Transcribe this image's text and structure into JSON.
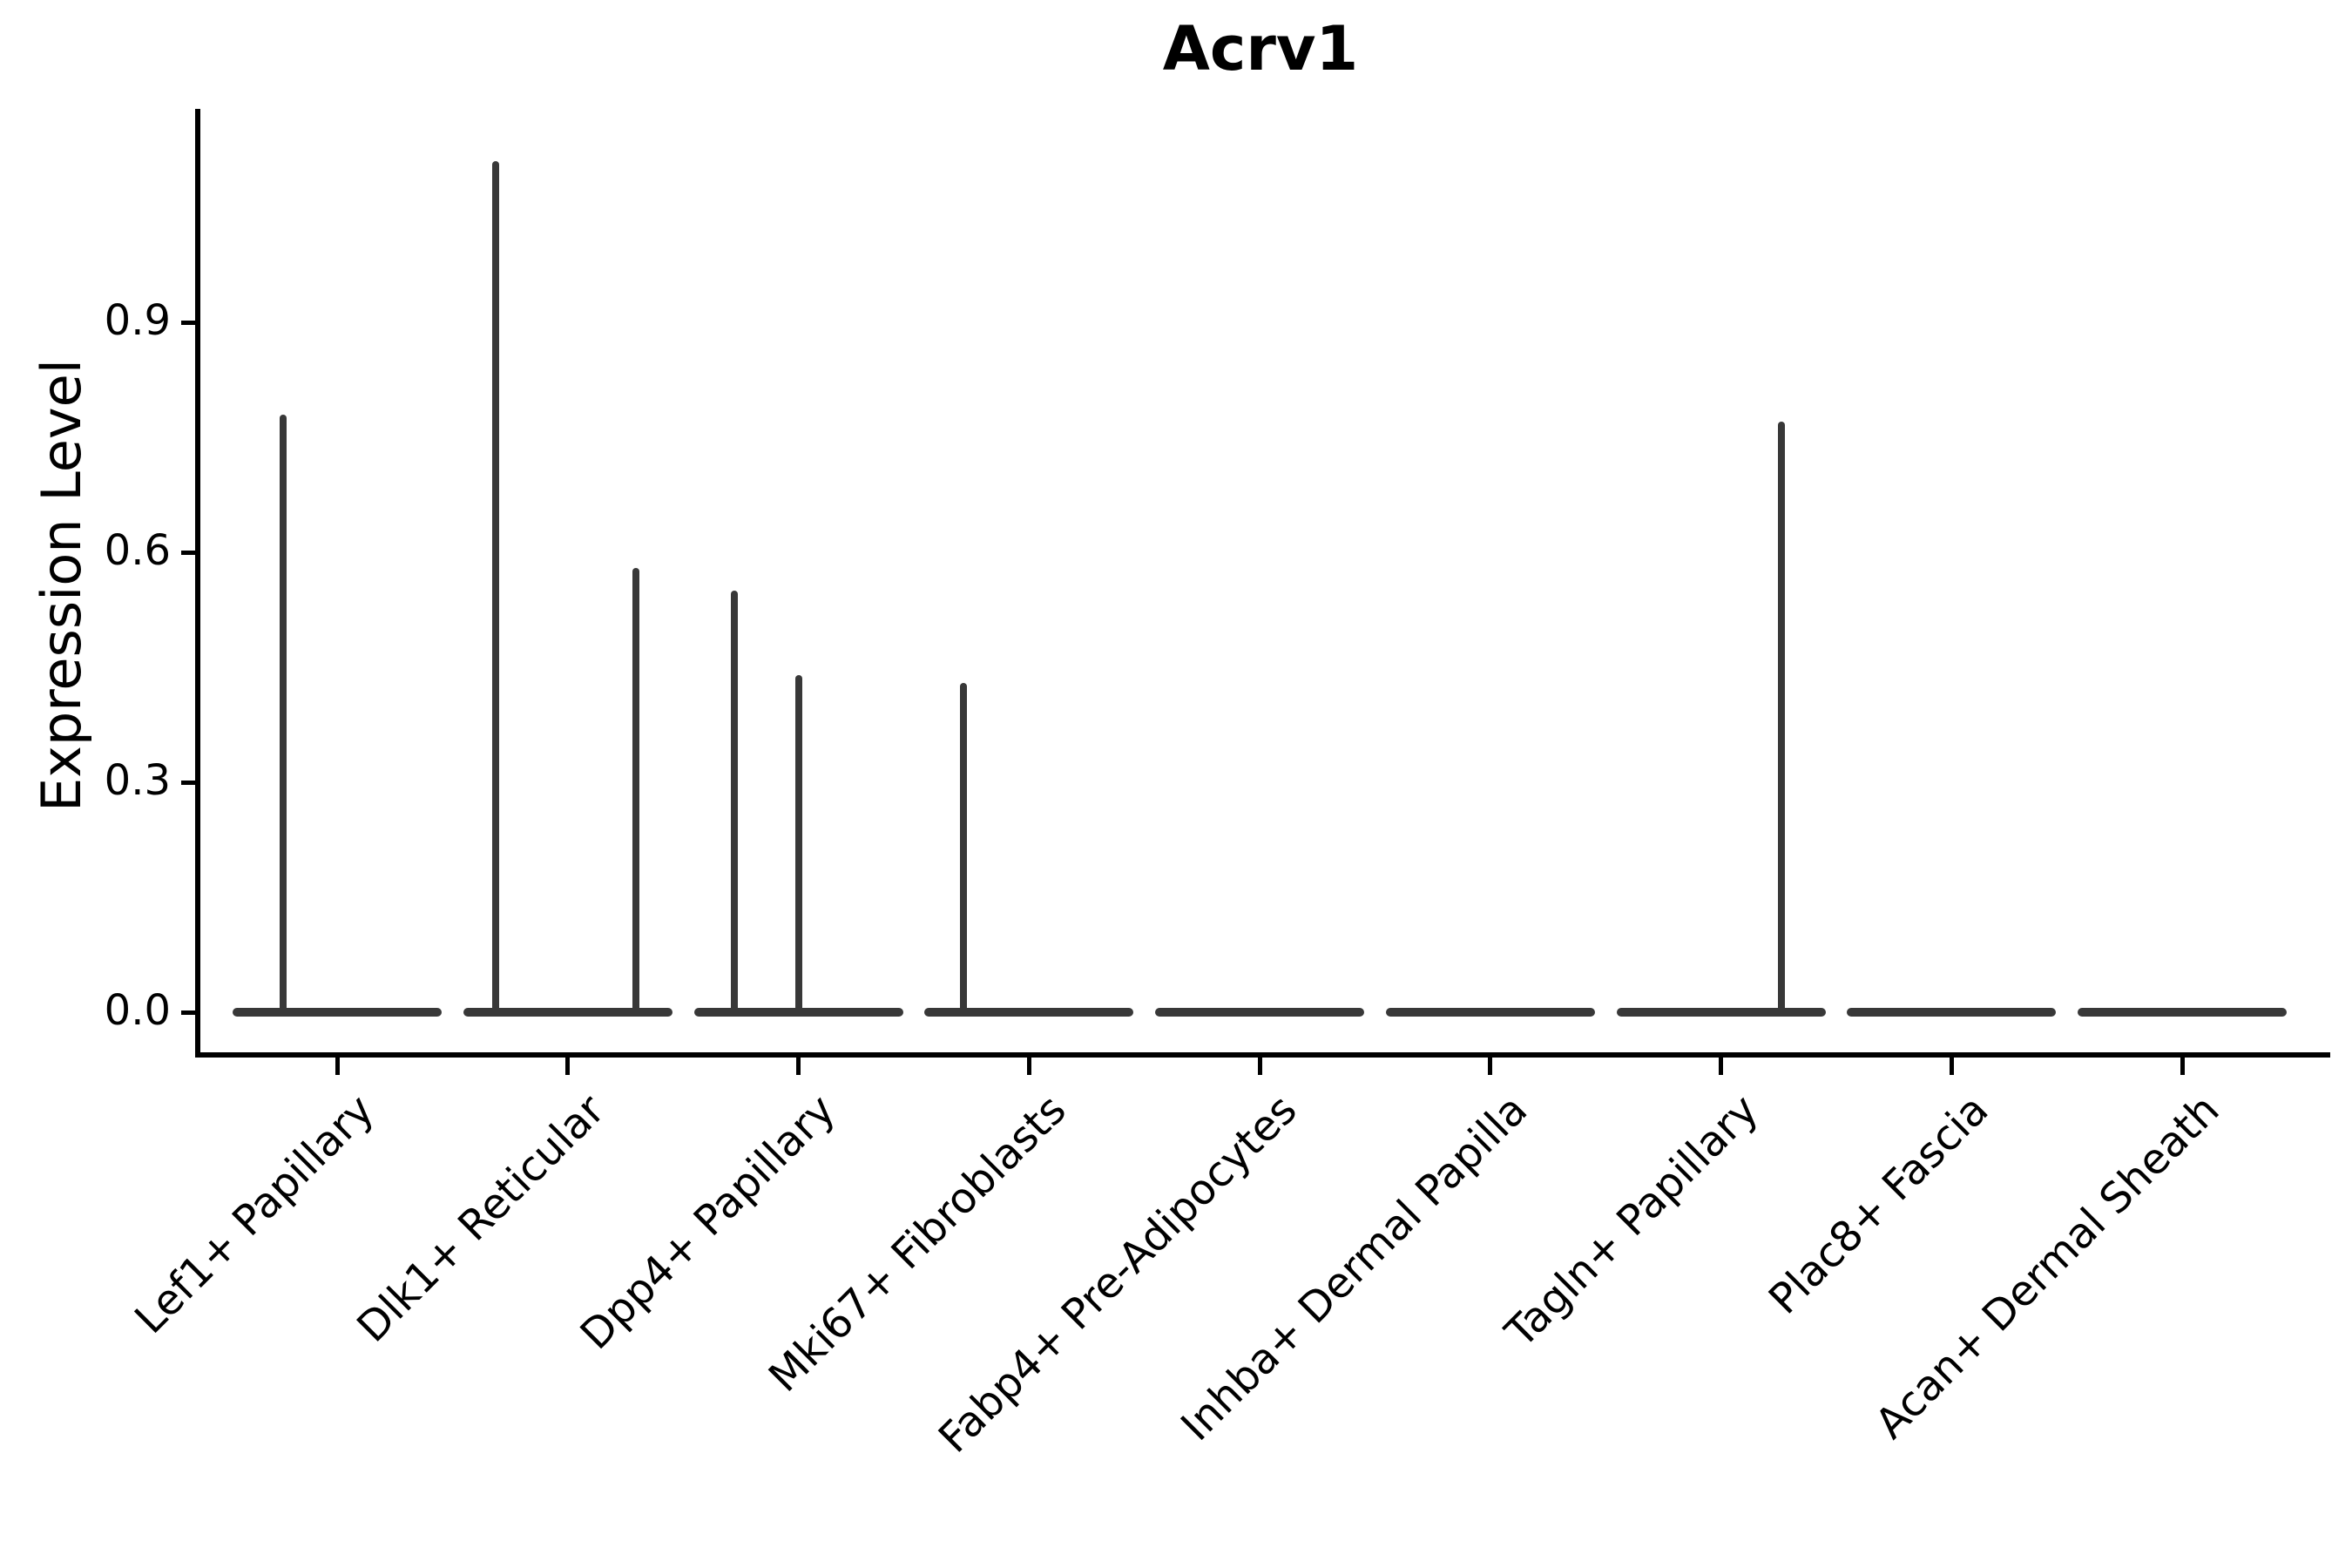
{
  "title": "Acrv1",
  "colors": {
    "background": "#ffffff",
    "violin": "#383838",
    "axis": "#000000",
    "text": "#000000"
  },
  "chart_data": {
    "type": "violin",
    "title": "Acrv1",
    "xlabel": "",
    "ylabel": "Expression Level",
    "categories": [
      "Lef1+ Papillary",
      "Dlk1+ Reticular",
      "Dpp4+ Papillary",
      "Mki67+ Fibroblasts",
      "Fabp4+ Pre-Adipocytes",
      "Inhba+ Dermal Papilla",
      "Tagln+ Papillary",
      "Plac8+ Fascia",
      "Acan+ Dermal Sheath"
    ],
    "yticks": [
      0.0,
      0.3,
      0.6,
      0.9
    ],
    "ytick_labels": [
      "0.0",
      "0.3",
      "0.6",
      "0.9"
    ],
    "ylim": [
      -0.06,
      1.18
    ],
    "grid": false,
    "legend_position": "none",
    "violins": [
      {
        "category": "Lef1+ Papillary",
        "baseline_value": 0.0,
        "spikes": [
          {
            "value": 0.78,
            "x_offset_frac": -0.234
          }
        ]
      },
      {
        "category": "Dlk1+ Reticular",
        "baseline_value": 0.0,
        "spikes": [
          {
            "value": 1.11,
            "x_offset_frac": -0.313
          },
          {
            "value": 0.58,
            "x_offset_frac": 0.295
          }
        ]
      },
      {
        "category": "Dpp4+ Papillary",
        "baseline_value": 0.0,
        "spikes": [
          {
            "value": 0.55,
            "x_offset_frac": -0.279
          },
          {
            "value": 0.44,
            "x_offset_frac": 0.0
          }
        ]
      },
      {
        "category": "Mki67+ Fibroblasts",
        "baseline_value": 0.0,
        "spikes": [
          {
            "value": 0.43,
            "x_offset_frac": -0.283
          }
        ]
      },
      {
        "category": "Fabp4+ Pre-Adipocytes",
        "baseline_value": 0.0,
        "spikes": []
      },
      {
        "category": "Inhba+ Dermal Papilla",
        "baseline_value": 0.0,
        "spikes": []
      },
      {
        "category": "Tagln+ Papillary",
        "baseline_value": 0.0,
        "spikes": [
          {
            "value": 0.77,
            "x_offset_frac": 0.264
          }
        ]
      },
      {
        "category": "Plac8+ Fascia",
        "baseline_value": 0.0,
        "spikes": []
      },
      {
        "category": "Acan+ Dermal Sheath",
        "baseline_value": 0.0,
        "spikes": []
      }
    ]
  }
}
